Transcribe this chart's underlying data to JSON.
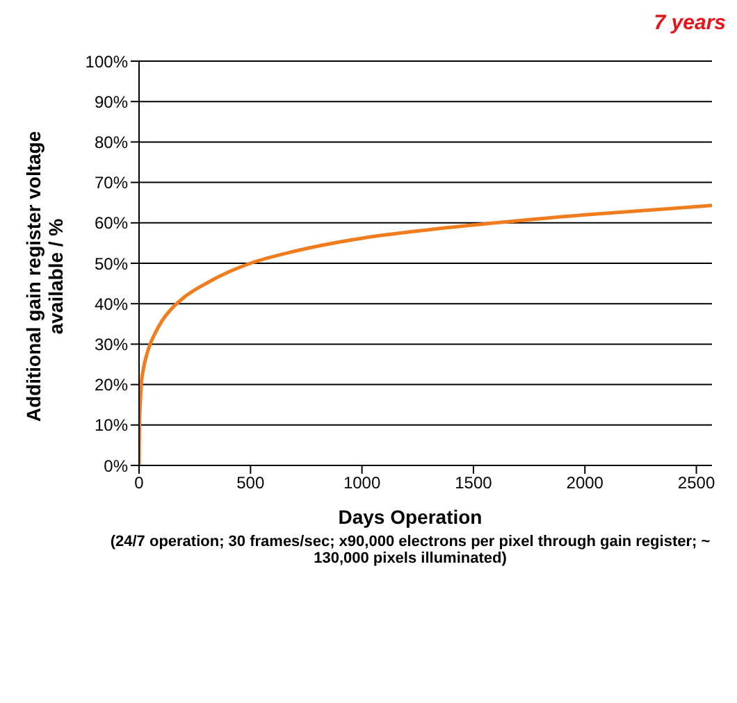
{
  "chart_data": {
    "type": "line",
    "xlabel": "Days Operation",
    "ylabel": "Additional gain register voltage available / %",
    "annotations": [
      "7 years",
      "(24/7 operation; 30 frames/sec; x90,000 electrons per pixel through gain register; ~ 130,000 pixels illuminated)"
    ],
    "x": [
      0,
      2,
      5,
      10,
      20,
      35,
      50,
      75,
      100,
      150,
      200,
      300,
      400,
      500,
      700,
      1000,
      1300,
      1600,
      2000,
      2300,
      2570
    ],
    "series": [
      {
        "color": "#f07c1e",
        "values": [
          0,
          10,
          15,
          20,
          24,
          27.5,
          30,
          33,
          35.5,
          39,
          41.5,
          45,
          47.8,
          50,
          53,
          56.2,
          58.3,
          60,
          62,
          63.2,
          64.3
        ]
      }
    ],
    "xlim": [
      0,
      2570
    ],
    "xticks": [
      0,
      500,
      1000,
      1500,
      2000,
      2500
    ],
    "ylim": [
      0,
      100
    ],
    "yticks": [
      {
        "value": 0,
        "label": "0%"
      },
      {
        "value": 10,
        "label": "10%"
      },
      {
        "value": 20,
        "label": "20%"
      },
      {
        "value": 30,
        "label": "30%"
      },
      {
        "value": 40,
        "label": "40%"
      },
      {
        "value": 50,
        "label": "50%"
      },
      {
        "value": 60,
        "label": "60%"
      },
      {
        "value": 70,
        "label": "70%"
      },
      {
        "value": 80,
        "label": "80%"
      },
      {
        "value": 90,
        "label": "90%"
      },
      {
        "value": 100,
        "label": "100%"
      }
    ],
    "grid": "y",
    "marker": "none",
    "line_style": "solid",
    "legend": false
  }
}
